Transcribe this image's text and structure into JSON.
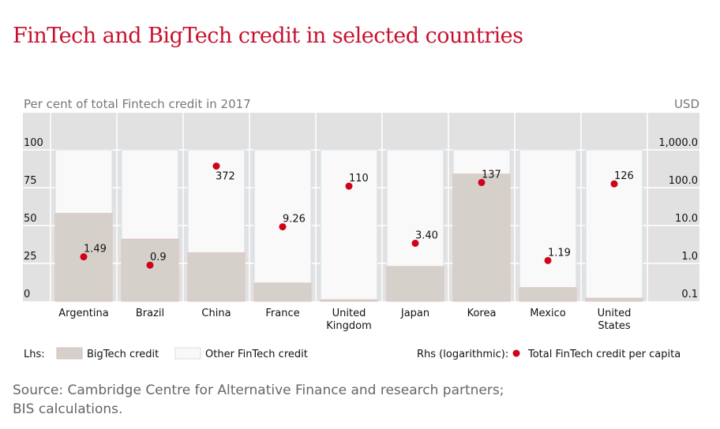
{
  "title": "FinTech and BigTech credit in selected countries",
  "source_line1": "Source: Cambridge Centre for Alternative Finance and research partners;",
  "source_line2": "BIS calculations.",
  "chart_data": {
    "type": "bar",
    "title": "FinTech and BigTech credit in selected countries",
    "ylabel_left": "Per cent of total Fintech credit in 2017",
    "ylabel_right": "USD",
    "categories": [
      [
        "Argentina"
      ],
      [
        "Brazil"
      ],
      [
        "China"
      ],
      [
        "France"
      ],
      [
        "United",
        "Kingdom"
      ],
      [
        "Japan"
      ],
      [
        "Korea"
      ],
      [
        "Mexico"
      ],
      [
        "United",
        "States"
      ]
    ],
    "left_axis": {
      "ylim": [
        0,
        100
      ],
      "ticks": [
        0,
        25,
        50,
        75,
        100
      ],
      "tick_labels": [
        "0",
        "25",
        "50",
        "75",
        "100"
      ]
    },
    "right_axis": {
      "scale": "log",
      "ylim": [
        0.1,
        1000
      ],
      "ticks": [
        0.1,
        1,
        10,
        100,
        1000
      ],
      "tick_labels": [
        "0.1",
        "1.0",
        "10.0",
        "100.0",
        "1,000.0"
      ]
    },
    "series": [
      {
        "name": "BigTech credit",
        "axis": "left",
        "kind": "stacked-bar",
        "color": "#d6d0cb",
        "values": [
          58,
          41,
          32,
          12,
          1,
          23,
          84,
          9,
          2
        ]
      },
      {
        "name": "Other FinTech credit",
        "axis": "left",
        "kind": "stacked-bar",
        "color": "#f8f9f8",
        "values": [
          42,
          59,
          68,
          88,
          99,
          77,
          16,
          91,
          98
        ]
      },
      {
        "name": "Total FinTech credit per capita",
        "axis": "right",
        "kind": "scatter",
        "color": "#d0021b",
        "values": [
          1.49,
          0.9,
          372,
          9.26,
          110,
          3.4,
          137,
          1.19,
          126
        ],
        "labels": [
          "1.49",
          "0.9",
          "372",
          "9.26",
          "110",
          "3.40",
          "137",
          "1.19",
          "126"
        ]
      }
    ],
    "legend": {
      "lhs_label": "Lhs:",
      "rhs_label": "Rhs (logarithmic):",
      "placement": "bottom"
    },
    "grid": true
  }
}
